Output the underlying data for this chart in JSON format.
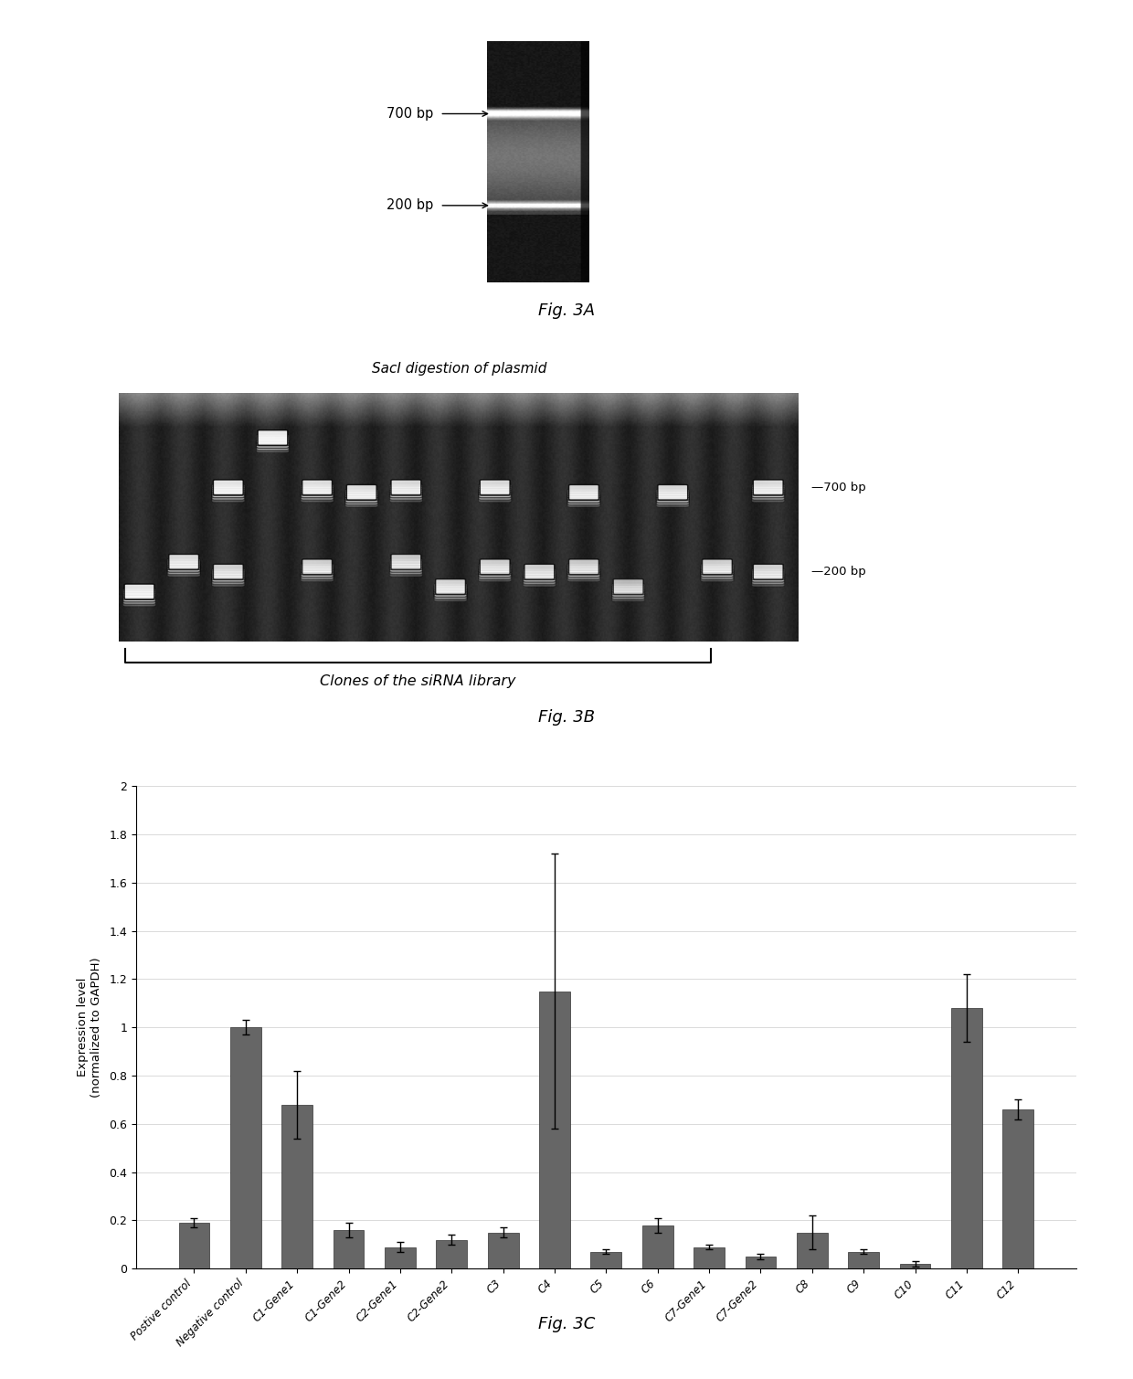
{
  "fig3a_label": "Fig. 3A",
  "fig3b_label": "Fig. 3B",
  "fig3c_label": "Fig. 3C",
  "fig3b_title": "SacI digestion of plasmid",
  "fig3b_xlabel": "Clones of the siRNA library",
  "fig3a_700bp": "700 bp",
  "fig3a_200bp": "200 bp",
  "fig3b_700bp": "—700 bp",
  "fig3b_200bp": "—200 bp",
  "bar_categories": [
    "Postive control",
    "Negative control",
    "C1-Gene1",
    "C1-Gene2",
    "C2-Gene1",
    "C2-Gene2",
    "C3",
    "C4",
    "C5",
    "C6",
    "C7-Gene1",
    "C7-Gene2",
    "C8",
    "C9",
    "C10",
    "C11",
    "C12"
  ],
  "bar_values": [
    0.19,
    1.0,
    0.68,
    0.16,
    0.09,
    0.12,
    0.15,
    1.15,
    0.07,
    0.18,
    0.09,
    0.05,
    0.15,
    0.07,
    0.02,
    1.08,
    0.66
  ],
  "bar_errors": [
    0.02,
    0.03,
    0.14,
    0.03,
    0.02,
    0.02,
    0.02,
    0.57,
    0.01,
    0.03,
    0.01,
    0.01,
    0.07,
    0.01,
    0.01,
    0.14,
    0.04
  ],
  "bar_color": "#666666",
  "ylabel": "Expression level\n(normalized to GAPDH)",
  "ylim": [
    0,
    2
  ],
  "yticks": [
    0,
    0.2,
    0.4,
    0.6,
    0.8,
    1.0,
    1.2,
    1.4,
    1.6,
    1.8,
    2
  ],
  "background_color": "#ffffff",
  "fig_label_fontsize": 13,
  "bar_label_fontsize": 8.5
}
